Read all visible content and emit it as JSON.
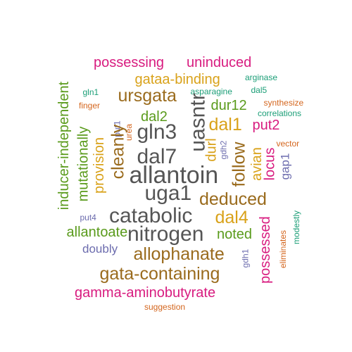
{
  "palette": {
    "green": "#55a02b",
    "orange": "#d4661e",
    "purple": "#6c6cae",
    "magenta": "#d81b7f",
    "lime": "#5a9b1c",
    "gold": "#d9a21a",
    "brown": "#9a6b1d",
    "gray": "#555555",
    "teal": "#1b9e77"
  },
  "words": [
    {
      "text": "possessing",
      "color": "magenta",
      "weight": 3,
      "vertical": false
    },
    {
      "text": "uninduced",
      "color": "magenta",
      "weight": 3,
      "vertical": false
    },
    {
      "text": "inducer-independent",
      "color": "lime",
      "weight": 3,
      "vertical": true
    },
    {
      "text": "gataa-binding",
      "color": "gold",
      "weight": 3,
      "vertical": false
    },
    {
      "text": "arginase",
      "color": "teal",
      "weight": 1,
      "vertical": false
    },
    {
      "text": "gln1",
      "color": "teal",
      "weight": 1,
      "vertical": false
    },
    {
      "text": "ursgata",
      "color": "brown",
      "weight": 4,
      "vertical": false
    },
    {
      "text": "asparagine",
      "color": "teal",
      "weight": 1,
      "vertical": false
    },
    {
      "text": "dal5",
      "color": "teal",
      "weight": 1,
      "vertical": false
    },
    {
      "text": "finger",
      "color": "orange",
      "weight": 1,
      "vertical": false
    },
    {
      "text": "uasntr",
      "color": "gray",
      "weight": 5,
      "vertical": true
    },
    {
      "text": "synthesize",
      "color": "orange",
      "weight": 1,
      "vertical": false
    },
    {
      "text": "dal2",
      "color": "lime",
      "weight": 3,
      "vertical": false
    },
    {
      "text": "dur12",
      "color": "lime",
      "weight": 3,
      "vertical": false
    },
    {
      "text": "correlations",
      "color": "teal",
      "weight": 1,
      "vertical": false
    },
    {
      "text": "mutationally",
      "color": "lime",
      "weight": 3,
      "vertical": true
    },
    {
      "text": "put1",
      "color": "purple",
      "weight": 1,
      "vertical": true
    },
    {
      "text": "urea",
      "color": "orange",
      "weight": 1,
      "vertical": true
    },
    {
      "text": "gln3",
      "color": "gray",
      "weight": 5,
      "vertical": false
    },
    {
      "text": "dal1",
      "color": "gold",
      "weight": 4,
      "vertical": false
    },
    {
      "text": "put2",
      "color": "magenta",
      "weight": 3,
      "vertical": false
    },
    {
      "text": "provision",
      "color": "gold",
      "weight": 3,
      "vertical": true
    },
    {
      "text": "cleanly",
      "color": "brown",
      "weight": 4,
      "vertical": true
    },
    {
      "text": "dal7",
      "color": "gray",
      "weight": 5,
      "vertical": false
    },
    {
      "text": "durl",
      "color": "gold",
      "weight": 3,
      "vertical": true
    },
    {
      "text": "gdh2",
      "color": "purple",
      "weight": 1,
      "vertical": true
    },
    {
      "text": "follow",
      "color": "brown",
      "weight": 4,
      "vertical": true
    },
    {
      "text": "avian",
      "color": "gold",
      "weight": 3,
      "vertical": true
    },
    {
      "text": "locus",
      "color": "magenta",
      "weight": 3,
      "vertical": true
    },
    {
      "text": "vector",
      "color": "orange",
      "weight": 1,
      "vertical": false
    },
    {
      "text": "gap1",
      "color": "purple",
      "weight": 2,
      "vertical": true
    },
    {
      "text": "allantoin",
      "color": "gray",
      "weight": 6,
      "vertical": false
    },
    {
      "text": "uga1",
      "color": "gray",
      "weight": 5,
      "vertical": false
    },
    {
      "text": "deduced",
      "color": "brown",
      "weight": 4,
      "vertical": false
    },
    {
      "text": "put4",
      "color": "purple",
      "weight": 1,
      "vertical": false
    },
    {
      "text": "catabolic",
      "color": "gray",
      "weight": 5,
      "vertical": false
    },
    {
      "text": "dal4",
      "color": "gold",
      "weight": 4,
      "vertical": false
    },
    {
      "text": "allantoate",
      "color": "lime",
      "weight": 3,
      "vertical": false
    },
    {
      "text": "nitrogen",
      "color": "gray",
      "weight": 5,
      "vertical": false
    },
    {
      "text": "noted",
      "color": "lime",
      "weight": 3,
      "vertical": false
    },
    {
      "text": "possessed",
      "color": "magenta",
      "weight": 3,
      "vertical": true
    },
    {
      "text": "eliminates",
      "color": "orange",
      "weight": 1,
      "vertical": true
    },
    {
      "text": "modestly",
      "color": "teal",
      "weight": 1,
      "vertical": true
    },
    {
      "text": "doubly",
      "color": "purple",
      "weight": 2,
      "vertical": false
    },
    {
      "text": "allophanate",
      "color": "brown",
      "weight": 4,
      "vertical": false
    },
    {
      "text": "gdh1",
      "color": "purple",
      "weight": 1,
      "vertical": true
    },
    {
      "text": "gata-containing",
      "color": "brown",
      "weight": 4,
      "vertical": false
    },
    {
      "text": "gamma-aminobutyrate",
      "color": "magenta",
      "weight": 3,
      "vertical": false
    },
    {
      "text": "suggestion",
      "color": "orange",
      "weight": 1,
      "vertical": false
    }
  ]
}
